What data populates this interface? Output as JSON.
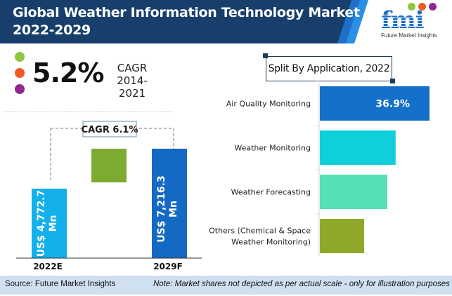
{
  "header": {
    "title_line1": "Global Weather Information Technology Market",
    "title_line2": "2022-2029",
    "bg_color": "#183f6b",
    "logo": {
      "letters": "fmi",
      "tagline": "Future Market Insights",
      "dot_colors": [
        "#8dc63f",
        "#f15a24",
        "#92278f"
      ]
    }
  },
  "cagr_block": {
    "value": "5.2%",
    "label_line1": "CAGR",
    "label_line2": "2014-2021",
    "dot_colors": [
      "#8dc63f",
      "#f15a24",
      "#92278f"
    ]
  },
  "chart_data": [
    {
      "type": "bar",
      "title": "Market Value",
      "categories": [
        "2022E",
        "2029F"
      ],
      "values": [
        4772.7,
        7216.3
      ],
      "unit": "US$ Mn",
      "value_labels": [
        "US$ 4,772.7 Mn",
        "US$ 7,216.3 Mn"
      ],
      "increment_bar": {
        "value": 2443.6,
        "color": "#7cab30"
      },
      "bar_colors": [
        "#13b0ec",
        "#1469c3"
      ],
      "annotation": "CAGR 6.1%",
      "xlabel": "",
      "ylabel": "",
      "grid": false,
      "note": "not to scale"
    },
    {
      "type": "bar",
      "orientation": "horizontal",
      "title": "Split By Application, 2022",
      "categories": [
        "Air Quality Monitoring",
        "Weather Monitoring",
        "Weather Forecasting",
        "Others (Chemical & Space Weather Monitoring)"
      ],
      "category_lines": [
        [
          "Air Quality Monitoring"
        ],
        [
          "Weather Monitoring"
        ],
        [
          "Weather Forecasting"
        ],
        [
          "Others (Chemical & Space",
          "Weather Monitoring)"
        ]
      ],
      "values": [
        36.9,
        25.5,
        22.7,
        14.9
      ],
      "value_labels": [
        "36.9%",
        "",
        "",
        ""
      ],
      "bar_colors": [
        "#1470c8",
        "#0fcfda",
        "#57e0b6",
        "#8ea829"
      ],
      "xlim": [
        0,
        36.9
      ],
      "grid": false
    }
  ],
  "footer": {
    "source": "Source: Future Market Insights",
    "note": "Note: Market shares not depicted as per actual scale - only for illustration purposes"
  }
}
